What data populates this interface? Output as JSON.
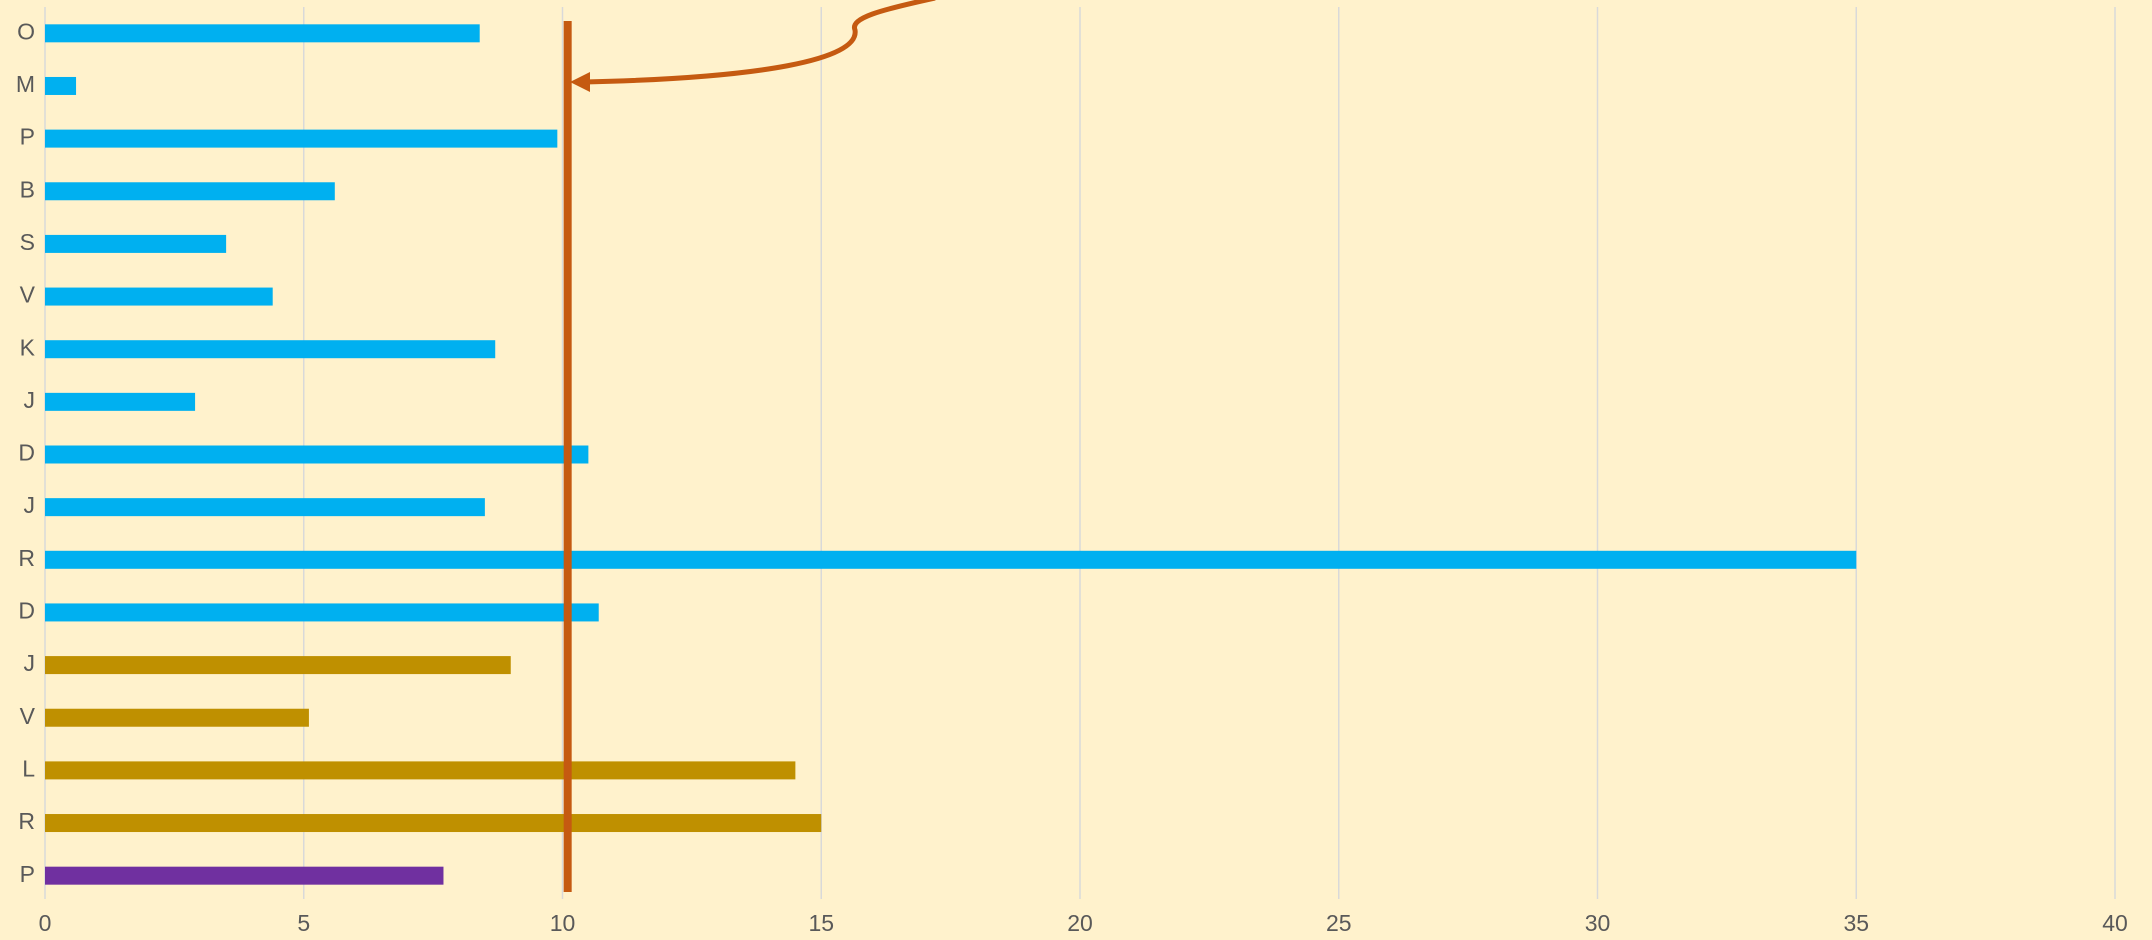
{
  "chart_data": {
    "type": "barh",
    "categories": [
      "O",
      "M",
      "P",
      "B",
      "S",
      "V",
      "K",
      "J",
      "D",
      "J",
      "R",
      "D",
      "J",
      "V",
      "L",
      "R",
      "P"
    ],
    "values": [
      8.4,
      0.6,
      9.9,
      5.6,
      3.5,
      4.4,
      8.7,
      2.9,
      10.5,
      8.5,
      35.0,
      10.7,
      9.0,
      5.1,
      14.5,
      15.0,
      7.7
    ],
    "colors": [
      "#00b0f0",
      "#00b0f0",
      "#00b0f0",
      "#00b0f0",
      "#00b0f0",
      "#00b0f0",
      "#00b0f0",
      "#00b0f0",
      "#00b0f0",
      "#00b0f0",
      "#00b0f0",
      "#00b0f0",
      "#bf9000",
      "#bf9000",
      "#bf9000",
      "#bf9000",
      "#7030a0"
    ],
    "reference_line": 10.1,
    "reference_color": "#c55a11",
    "xlim": [
      0,
      40
    ],
    "xticks": [
      0,
      5,
      10,
      15,
      20,
      25,
      30,
      35,
      40
    ],
    "grid": true
  }
}
